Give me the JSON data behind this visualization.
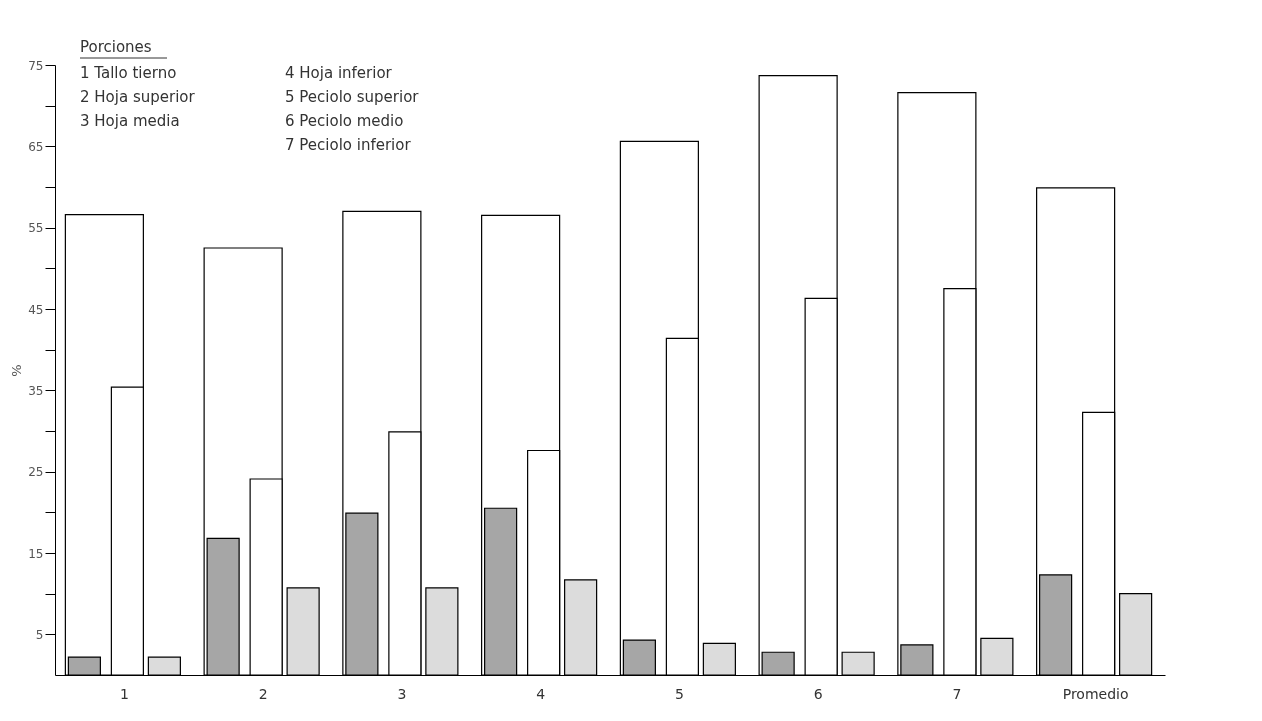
{
  "chart_data": {
    "type": "bar",
    "annotations": [
      "Porciones",
      "1  Tallo tierno",
      "2  Hoja superior",
      "3  Hoja media",
      "4  Hoja inferior",
      "5  Peciolo superior",
      "6  Peciolo medio",
      "7  Peciolo inferior"
    ],
    "ylabel": "%",
    "categories": [
      "1",
      "2",
      "3",
      "4",
      "5",
      "6",
      "7",
      "Promedio"
    ],
    "series": [
      {
        "color": "#a6a6a6",
        "values": [
          2.2,
          16.8,
          19.9,
          20.5,
          4.3,
          2.8,
          3.7,
          12.3
        ]
      },
      {
        "color": "#ffffff",
        "values": [
          56.6,
          52.5,
          57,
          56.5,
          65.6,
          73.7,
          71.6,
          59.9
        ]
      },
      {
        "color": "#ffffff",
        "values": [
          35.4,
          24.1,
          29.9,
          27.6,
          41.4,
          46.3,
          47.5,
          32.3
        ]
      },
      {
        "color": "#dcdcdc",
        "values": [
          2.2,
          10.7,
          10.7,
          11.7,
          3.9,
          2.8,
          4.5,
          10
        ]
      }
    ],
    "ylim": [
      0,
      75
    ],
    "yticks": [
      5,
      {
        "value": 10,
        "label": null
      },
      15,
      {
        "value": 20,
        "label": null
      },
      25,
      {
        "value": 30,
        "label": null
      },
      35,
      {
        "value": 40,
        "label": null
      },
      45,
      {
        "value": 50,
        "label": null
      },
      55,
      {
        "value": 60,
        "label": null
      },
      65,
      {
        "value": 70,
        "label": null
      },
      75
    ],
    "grid": false
  }
}
